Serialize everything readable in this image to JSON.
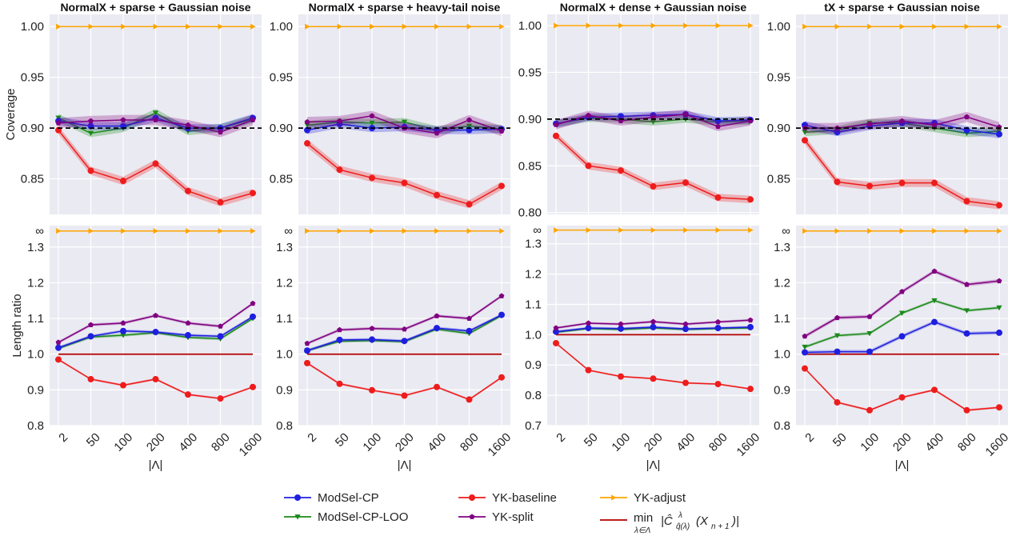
{
  "chart_data": {
    "type": "line",
    "x_categories": [
      "2",
      "50",
      "100",
      "200",
      "400",
      "800",
      "1600"
    ],
    "xlabel": "|Λ|",
    "row_ylabels": [
      "Coverage",
      "Length ratio"
    ],
    "infinity_label": "∞",
    "series_styles": {
      "ModSel-CP": {
        "color": "#1f1fe0",
        "marker": "circle"
      },
      "ModSel-CP-LOO": {
        "color": "#1a8a1a",
        "marker": "triangle-down"
      },
      "YK-baseline": {
        "color": "#ee1c1c",
        "marker": "circle"
      },
      "YK-split": {
        "color": "#800080",
        "marker": "pentagon"
      },
      "YK-adjust": {
        "color": "#ffa500",
        "marker": "triangle-right"
      },
      "min length reference": {
        "color": "#b30000",
        "marker": "none"
      }
    },
    "legend": {
      "placement": "bottom-center",
      "entries": [
        {
          "series": "ModSel-CP",
          "label": "ModSel-CP"
        },
        {
          "series": "ModSel-CP-LOO",
          "label": "ModSel-CP-LOO"
        },
        {
          "series": "YK-baseline",
          "label": "YK-baseline"
        },
        {
          "series": "YK-split",
          "label": "YK-split"
        },
        {
          "series": "YK-adjust",
          "label": "YK-adjust"
        },
        {
          "series": "min length reference",
          "label": "min over λ∈Λ of |Ĉ^λ_q̂(λ)(X_{n+1})|"
        }
      ]
    },
    "panels": [
      {
        "row": 0,
        "col": 0,
        "title": "NormalX + sparse + Gaussian noise",
        "ylim": [
          0.815,
          1.012
        ],
        "yticks": [
          0.85,
          0.9,
          0.95,
          1.0
        ],
        "ytick_labels": [
          "0.85",
          "0.90",
          "0.95",
          "1.00"
        ],
        "hline": {
          "y": 0.9,
          "style": "dashed",
          "color": "#000000"
        },
        "series": [
          {
            "name": "ModSel-CP",
            "values": [
              0.907,
              0.902,
              0.902,
              0.91,
              0.9,
              0.9,
              0.91
            ],
            "band": 0.004
          },
          {
            "name": "ModSel-CP-LOO",
            "values": [
              0.91,
              0.895,
              0.9,
              0.915,
              0.897,
              0.9,
              0.909
            ],
            "band": 0.004
          },
          {
            "name": "YK-baseline",
            "values": [
              0.898,
              0.858,
              0.848,
              0.865,
              0.838,
              0.827,
              0.836
            ],
            "band": 0.004
          },
          {
            "name": "YK-split",
            "values": [
              0.905,
              0.907,
              0.908,
              0.908,
              0.903,
              0.896,
              0.908
            ],
            "band": 0.005
          },
          {
            "name": "YK-adjust",
            "values": [
              1.0,
              1.0,
              1.0,
              1.0,
              1.0,
              1.0,
              1.0
            ],
            "band": 0
          }
        ]
      },
      {
        "row": 0,
        "col": 1,
        "title": "NormalX + sparse + heavy-tail noise",
        "ylim": [
          0.815,
          1.012
        ],
        "yticks": [
          0.85,
          0.9,
          0.95,
          1.0
        ],
        "ytick_labels": [
          "0.85",
          "0.90",
          "0.95",
          "1.00"
        ],
        "hline": {
          "y": 0.9,
          "style": "dashed",
          "color": "#000000"
        },
        "series": [
          {
            "name": "ModSel-CP",
            "values": [
              0.898,
              0.904,
              0.9,
              0.901,
              0.898,
              0.898,
              0.899
            ],
            "band": 0.004
          },
          {
            "name": "ModSel-CP-LOO",
            "values": [
              0.903,
              0.906,
              0.905,
              0.906,
              0.898,
              0.902,
              0.899
            ],
            "band": 0.004
          },
          {
            "name": "YK-baseline",
            "values": [
              0.885,
              0.859,
              0.851,
              0.846,
              0.834,
              0.825,
              0.843
            ],
            "band": 0.004
          },
          {
            "name": "YK-split",
            "values": [
              0.906,
              0.907,
              0.912,
              0.9,
              0.895,
              0.908,
              0.897
            ],
            "band": 0.005
          },
          {
            "name": "YK-adjust",
            "values": [
              1.0,
              1.0,
              1.0,
              1.0,
              1.0,
              1.0,
              1.0
            ],
            "band": 0
          }
        ]
      },
      {
        "row": 0,
        "col": 2,
        "title": "NormalX + dense + Gaussian noise",
        "ylim": [
          0.798,
          1.012
        ],
        "yticks": [
          0.8,
          0.85,
          0.9,
          0.95,
          1.0
        ],
        "ytick_labels": [
          "0.80",
          "0.85",
          "0.90",
          "0.95",
          "1.00"
        ],
        "hline": {
          "y": 0.9,
          "style": "dashed",
          "color": "#000000"
        },
        "series": [
          {
            "name": "ModSel-CP",
            "values": [
              0.895,
              0.902,
              0.903,
              0.904,
              0.905,
              0.898,
              0.899
            ],
            "band": 0.004
          },
          {
            "name": "ModSel-CP-LOO",
            "values": [
              0.895,
              0.901,
              0.9,
              0.897,
              0.9,
              0.897,
              0.898
            ],
            "band": 0.004
          },
          {
            "name": "YK-baseline",
            "values": [
              0.882,
              0.85,
              0.845,
              0.828,
              0.832,
              0.816,
              0.814
            ],
            "band": 0.004
          },
          {
            "name": "YK-split",
            "values": [
              0.894,
              0.904,
              0.898,
              0.902,
              0.905,
              0.892,
              0.898
            ],
            "band": 0.005
          },
          {
            "name": "YK-adjust",
            "values": [
              1.0,
              1.0,
              1.0,
              1.0,
              1.0,
              1.0,
              1.0
            ],
            "band": 0
          }
        ]
      },
      {
        "row": 0,
        "col": 3,
        "title": "tX + sparse + Gaussian noise",
        "ylim": [
          0.815,
          1.012
        ],
        "yticks": [
          0.85,
          0.9,
          0.95,
          1.0
        ],
        "ytick_labels": [
          "0.85",
          "0.90",
          "0.95",
          "1.00"
        ],
        "hline": {
          "y": 0.9,
          "style": "dashed",
          "color": "#000000"
        },
        "series": [
          {
            "name": "ModSel-CP",
            "values": [
              0.903,
              0.896,
              0.902,
              0.905,
              0.905,
              0.898,
              0.894
            ],
            "band": 0.004
          },
          {
            "name": "ModSel-CP-LOO",
            "values": [
              0.896,
              0.898,
              0.905,
              0.905,
              0.9,
              0.895,
              0.897
            ],
            "band": 0.004
          },
          {
            "name": "YK-baseline",
            "values": [
              0.888,
              0.847,
              0.843,
              0.846,
              0.846,
              0.828,
              0.824
            ],
            "band": 0.004
          },
          {
            "name": "YK-split",
            "values": [
              0.9,
              0.9,
              0.904,
              0.907,
              0.903,
              0.911,
              0.901
            ],
            "band": 0.005
          },
          {
            "name": "YK-adjust",
            "values": [
              1.0,
              1.0,
              1.0,
              1.0,
              1.0,
              1.0,
              1.0
            ],
            "band": 0
          }
        ]
      },
      {
        "row": 1,
        "col": 0,
        "title": "",
        "ylim": [
          0.8,
          1.36
        ],
        "yticks": [
          0.8,
          0.9,
          1.0,
          1.1,
          1.2,
          1.3
        ],
        "ytick_labels": [
          "0.8",
          "0.9",
          "1.0",
          "1.1",
          "1.2",
          "1.3"
        ],
        "inf_value": 1.345,
        "series": [
          {
            "name": "ModSel-CP",
            "values": [
              1.018,
              1.05,
              1.065,
              1.062,
              1.053,
              1.05,
              1.105
            ],
            "band": 0.004
          },
          {
            "name": "ModSel-CP-LOO",
            "values": [
              1.016,
              1.048,
              1.053,
              1.06,
              1.047,
              1.043,
              1.1
            ],
            "band": 0.004
          },
          {
            "name": "YK-baseline",
            "values": [
              0.985,
              0.93,
              0.913,
              0.93,
              0.887,
              0.876,
              0.908
            ],
            "band": 0.003
          },
          {
            "name": "YK-split",
            "values": [
              1.033,
              1.082,
              1.087,
              1.108,
              1.087,
              1.078,
              1.142
            ],
            "band": 0.004
          },
          {
            "name": "YK-adjust",
            "values": [
              1.345,
              1.345,
              1.345,
              1.345,
              1.345,
              1.345,
              1.345
            ],
            "band": 0
          },
          {
            "name": "min length reference",
            "values": [
              1.0,
              1.0,
              1.0,
              1.0,
              1.0,
              1.0,
              1.0
            ],
            "band": 0
          }
        ]
      },
      {
        "row": 1,
        "col": 1,
        "title": "",
        "ylim": [
          0.8,
          1.36
        ],
        "yticks": [
          0.8,
          0.9,
          1.0,
          1.1,
          1.2,
          1.3
        ],
        "ytick_labels": [
          "0.8",
          "0.9",
          "1.0",
          "1.1",
          "1.2",
          "1.3"
        ],
        "inf_value": 1.345,
        "series": [
          {
            "name": "ModSel-CP",
            "values": [
              1.01,
              1.04,
              1.041,
              1.037,
              1.073,
              1.065,
              1.11
            ],
            "band": 0.004
          },
          {
            "name": "ModSel-CP-LOO",
            "values": [
              1.01,
              1.036,
              1.038,
              1.035,
              1.07,
              1.058,
              1.108
            ],
            "band": 0.004
          },
          {
            "name": "YK-baseline",
            "values": [
              0.975,
              0.917,
              0.899,
              0.884,
              0.908,
              0.873,
              0.935
            ],
            "band": 0.003
          },
          {
            "name": "YK-split",
            "values": [
              1.03,
              1.068,
              1.072,
              1.07,
              1.107,
              1.1,
              1.163
            ],
            "band": 0.004
          },
          {
            "name": "YK-adjust",
            "values": [
              1.345,
              1.345,
              1.345,
              1.345,
              1.345,
              1.345,
              1.345
            ],
            "band": 0
          },
          {
            "name": "min length reference",
            "values": [
              1.0,
              1.0,
              1.0,
              1.0,
              1.0,
              1.0,
              1.0
            ],
            "band": 0
          }
        ]
      },
      {
        "row": 1,
        "col": 2,
        "title": "",
        "ylim": [
          0.7,
          1.36
        ],
        "yticks": [
          0.7,
          0.8,
          0.9,
          1.0,
          1.1,
          1.2,
          1.3
        ],
        "ytick_labels": [
          "0.7",
          "0.8",
          "0.9",
          "1.0",
          "1.1",
          "1.2",
          "1.3"
        ],
        "inf_value": 1.345,
        "series": [
          {
            "name": "ModSel-CP",
            "values": [
              1.01,
              1.022,
              1.02,
              1.025,
              1.019,
              1.022,
              1.025
            ],
            "band": 0.004
          },
          {
            "name": "ModSel-CP-LOO",
            "values": [
              1.008,
              1.02,
              1.017,
              1.022,
              1.017,
              1.02,
              1.022
            ],
            "band": 0.004
          },
          {
            "name": "YK-baseline",
            "values": [
              0.972,
              0.883,
              0.862,
              0.855,
              0.841,
              0.837,
              0.821
            ],
            "band": 0.003
          },
          {
            "name": "YK-split",
            "values": [
              1.022,
              1.038,
              1.035,
              1.043,
              1.035,
              1.042,
              1.048
            ],
            "band": 0.004
          },
          {
            "name": "YK-adjust",
            "values": [
              1.345,
              1.345,
              1.345,
              1.345,
              1.345,
              1.345,
              1.345
            ],
            "band": 0
          },
          {
            "name": "min length reference",
            "values": [
              1.0,
              1.0,
              1.0,
              1.0,
              1.0,
              1.0,
              1.0
            ],
            "band": 0
          }
        ]
      },
      {
        "row": 1,
        "col": 3,
        "title": "",
        "ylim": [
          0.8,
          1.36
        ],
        "yticks": [
          0.8,
          0.9,
          1.0,
          1.1,
          1.2,
          1.3
        ],
        "ytick_labels": [
          "0.8",
          "0.9",
          "1.0",
          "1.1",
          "1.2",
          "1.3"
        ],
        "inf_value": 1.345,
        "series": [
          {
            "name": "ModSel-CP",
            "values": [
              1.005,
              1.007,
              1.007,
              1.05,
              1.09,
              1.058,
              1.06
            ],
            "band": 0.005
          },
          {
            "name": "ModSel-CP-LOO",
            "values": [
              1.02,
              1.052,
              1.058,
              1.115,
              1.15,
              1.122,
              1.13
            ],
            "band": 0.004
          },
          {
            "name": "YK-baseline",
            "values": [
              0.96,
              0.865,
              0.843,
              0.879,
              0.9,
              0.843,
              0.851
            ],
            "band": 0.003
          },
          {
            "name": "YK-split",
            "values": [
              1.05,
              1.102,
              1.105,
              1.175,
              1.232,
              1.195,
              1.205
            ],
            "band": 0.005
          },
          {
            "name": "YK-adjust",
            "values": [
              1.345,
              1.345,
              1.345,
              1.345,
              1.345,
              1.345,
              1.345
            ],
            "band": 0
          },
          {
            "name": "min length reference",
            "values": [
              1.0,
              1.0,
              1.0,
              1.0,
              1.0,
              1.0,
              1.0
            ],
            "band": 0
          }
        ]
      }
    ]
  }
}
